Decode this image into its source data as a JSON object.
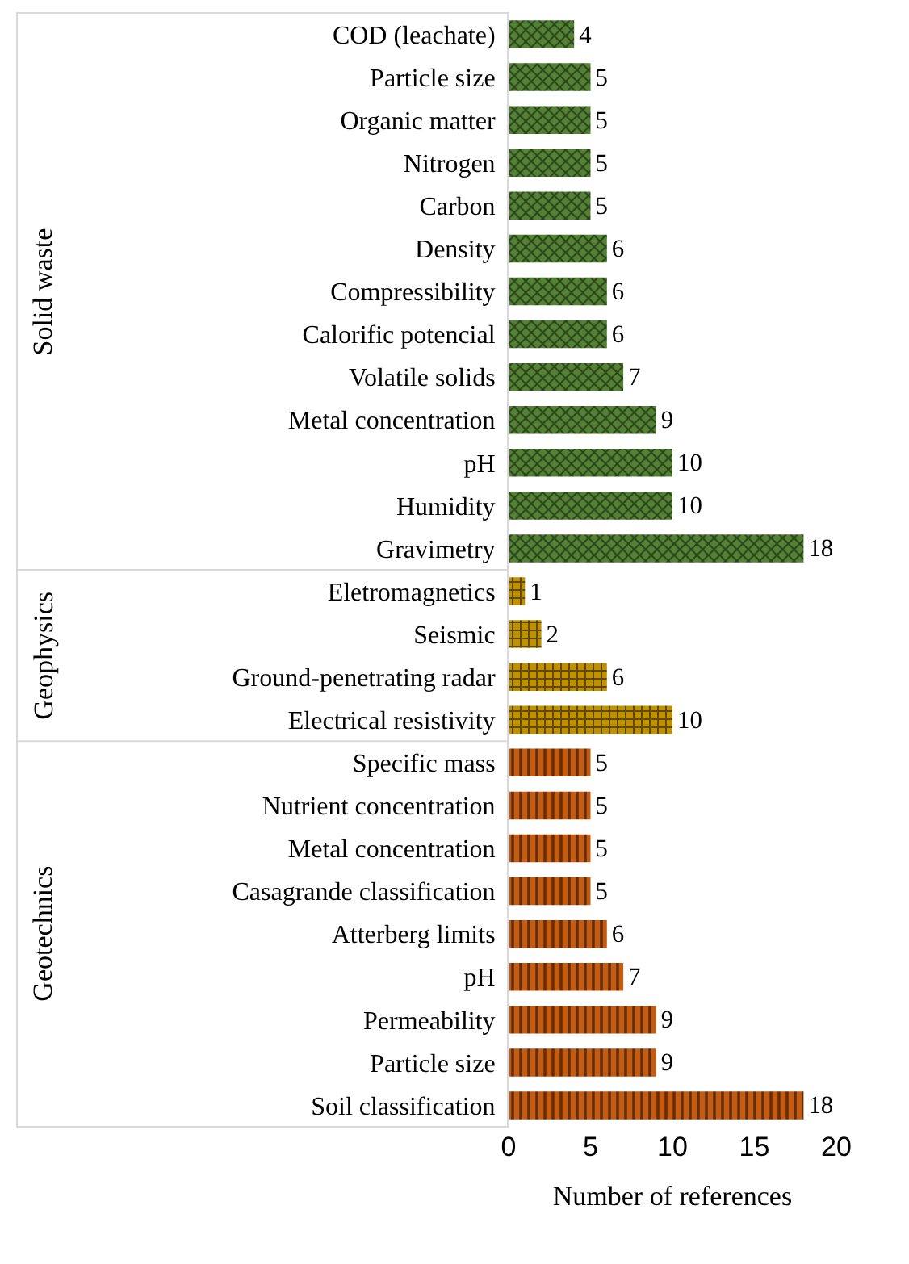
{
  "chart_data": {
    "type": "bar",
    "orientation": "horizontal",
    "xlabel": "Number of references",
    "categories": [
      "COD (leachate)",
      "Particle size",
      "Organic matter",
      "Nitrogen",
      "Carbon",
      "Density",
      "Compressibility",
      "Calorific potencial",
      "Volatile solids",
      "Metal concentration",
      "pH",
      "Humidity",
      "Gravimetry",
      "Eletromagnetics",
      "Seismic",
      "Ground-penetrating radar",
      "Electrical resistivity",
      "Specific mass",
      "Nutrient concentration",
      "Metal concentration",
      "Casagrande classification",
      "Atterberg limits",
      "pH",
      "Permeability",
      "Particle size",
      "Soil classification"
    ],
    "series": [
      {
        "color": "#548235",
        "values": [
          4,
          5,
          5,
          5,
          5,
          6,
          6,
          6,
          7,
          9,
          10,
          10,
          18,
          null,
          null,
          null,
          null,
          null,
          null,
          null,
          null,
          null,
          null,
          null,
          null,
          null
        ]
      },
      {
        "color": "#bf9000",
        "values": [
          null,
          null,
          null,
          null,
          null,
          null,
          null,
          null,
          null,
          null,
          null,
          null,
          null,
          1,
          2,
          6,
          10,
          null,
          null,
          null,
          null,
          null,
          null,
          null,
          null,
          null
        ]
      },
      {
        "color": "#c55a11",
        "values": [
          null,
          null,
          null,
          null,
          null,
          null,
          null,
          null,
          null,
          null,
          null,
          null,
          null,
          null,
          null,
          null,
          null,
          5,
          5,
          5,
          5,
          6,
          7,
          9,
          9,
          18
        ]
      }
    ],
    "annotations": [
      "Solid waste",
      "Geophysics",
      "Geotechnics"
    ],
    "xlim": [
      0,
      20
    ],
    "xticks": [
      0,
      5,
      10,
      15,
      20
    ],
    "data_labels": true
  }
}
